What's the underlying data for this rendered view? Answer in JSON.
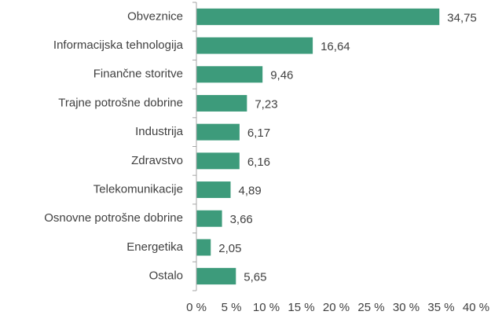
{
  "chart_data": {
    "type": "bar",
    "orientation": "horizontal",
    "categories": [
      "Obveznice",
      "Informacijska tehnologija",
      "Finančne storitve",
      "Trajne potrošne dobrine",
      "Industrija",
      "Zdravstvo",
      "Telekomunikacije",
      "Osnovne potrošne dobrine",
      "Energetika",
      "Ostalo"
    ],
    "values": [
      34.75,
      16.64,
      9.46,
      7.23,
      6.17,
      6.16,
      4.89,
      3.66,
      2.05,
      5.65
    ],
    "value_labels": [
      "34,75",
      "16,64",
      "9,46",
      "7,23",
      "6,17",
      "6,16",
      "4,89",
      "3,66",
      "2,05",
      "5,65"
    ],
    "color": "#3d9b7b",
    "xlim": [
      0,
      40
    ],
    "xticks": [
      {
        "value": 0,
        "label": "0 %"
      },
      {
        "value": 5,
        "label": "5 %"
      },
      {
        "value": 10,
        "label": "10 %"
      },
      {
        "value": 15,
        "label": "15 %"
      },
      {
        "value": 20,
        "label": "20 %"
      },
      {
        "value": 25,
        "label": "25 %"
      },
      {
        "value": 30,
        "label": "30 %"
      },
      {
        "value": 35,
        "label": "35 %"
      },
      {
        "value": 40,
        "label": "40 %"
      }
    ],
    "grid": false
  }
}
